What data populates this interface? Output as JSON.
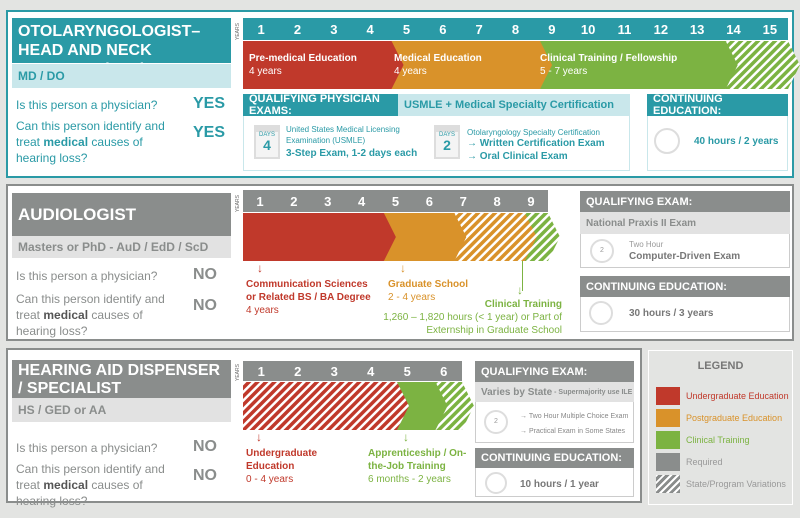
{
  "colors": {
    "teal": "#2a9aa6",
    "light_teal": "#c9e7eb",
    "red": "#c0392b",
    "orange": "#d9922a",
    "green": "#7cb342",
    "gray": "#8a8d8c",
    "light_gray": "#e2e2e2"
  },
  "years_label": "YEARS",
  "ent": {
    "title": "OTOLARYNGOLOGIST–HEAD AND NECK SURGEON (ENT)",
    "degree": "MD / DO",
    "q1": "Is this person a physician?",
    "a1": "YES",
    "q2_pre": "Can this person identify and treat ",
    "q2_bold": "medical",
    "q2_post": " causes of hearing loss?",
    "a2": "YES",
    "years": [
      1,
      2,
      3,
      4,
      5,
      6,
      7,
      8,
      9,
      10,
      11,
      12,
      13,
      14,
      15
    ],
    "segments": [
      {
        "label": "Pre-medical Education",
        "duration": "4 years",
        "color": "red",
        "start": 0,
        "end": 4,
        "hatched": false
      },
      {
        "label": "Medical Education",
        "duration": "4 years",
        "color": "orange",
        "start": 4,
        "end": 8,
        "hatched": false
      },
      {
        "label": "Clinical Training / Fellowship",
        "duration": "5 - 7 years",
        "color": "green",
        "start": 8,
        "end": 13,
        "hatched": false
      },
      {
        "color": "green",
        "start": 13,
        "end": 15,
        "hatched": true
      }
    ],
    "exam_header": "QUALIFYING PHYSICIAN EXAMS:",
    "exam_header2": "USMLE + Medical Specialty Certification",
    "exam1": {
      "days_label": "DAYS",
      "days": "4",
      "name": "United States Medical Licensing Examination (USMLE)",
      "detail": "3-Step Exam, 1-2 days each"
    },
    "exam2": {
      "days_label": "DAYS",
      "days": "2",
      "name": "Otolaryngology Specialty Certification",
      "items": [
        "→ Written Certification Exam",
        "→ Oral Clinical Exam"
      ]
    },
    "ce_header": "CONTINUING EDUCATION:",
    "ce": "40 hours / 2 years"
  },
  "aud": {
    "title": "AUDIOLOGIST",
    "degree": "Masters or PhD - AuD / EdD / ScD",
    "q1": "Is this person a physician?",
    "a1": "NO",
    "q2_pre": "Can this person identify and treat ",
    "q2_bold": "medical",
    "q2_post": " causes of hearing loss?",
    "a2": "NO",
    "years": [
      1,
      2,
      3,
      4,
      5,
      6,
      7,
      8,
      9
    ],
    "segments": [
      {
        "color": "red",
        "start": 0,
        "end": 4,
        "hatched": false
      },
      {
        "color": "orange",
        "start": 4,
        "end": 6,
        "hatched": false
      },
      {
        "color": "orange",
        "start": 6,
        "end": 8,
        "hatched": true
      },
      {
        "color": "green",
        "start": 8,
        "end": 9,
        "hatched": true
      }
    ],
    "labels": [
      {
        "title": "Communication Sciences or Related BS / BA Degree",
        "duration": "4 years",
        "color": "red"
      },
      {
        "title": "Graduate School",
        "duration": "2 - 4 years",
        "color": "orange"
      },
      {
        "title": "Clinical Training",
        "duration": "1,260 – 1,820 hours (< 1 year) or Part of Externship in Graduate School",
        "color": "green"
      }
    ],
    "exam_header": "QUALIFYING EXAM:",
    "exam_name": "National Praxis II Exam",
    "exam_small": "Two Hour",
    "exam_detail": "Computer-Driven Exam",
    "ce_header": "CONTINUING EDUCATION:",
    "ce": "30 hours / 3 years"
  },
  "had": {
    "title": "HEARING AID DISPENSER / SPECIALIST",
    "degree": "HS / GED or AA",
    "q1": "Is this person a physician?",
    "a1": "NO",
    "q2_pre": "Can this person identify and treat ",
    "q2_bold": "medical",
    "q2_post": " causes of hearing loss?",
    "a2": "NO",
    "years": [
      1,
      2,
      3,
      4,
      5,
      6
    ],
    "segments": [
      {
        "color": "red",
        "start": 0,
        "end": 4,
        "hatched": true
      },
      {
        "color": "green",
        "start": 4,
        "end": 5,
        "hatched": false
      },
      {
        "color": "green",
        "start": 5,
        "end": 6,
        "hatched": true
      }
    ],
    "labels": [
      {
        "title": "Undergraduate Education",
        "duration": "0 - 4 years",
        "color": "red"
      },
      {
        "title": "Apprenticeship / On-the-Job Training",
        "duration": "6 months - 2 years",
        "color": "green"
      }
    ],
    "exam_header": "QUALIFYING EXAM:",
    "exam_name": "Varies by State",
    "exam_name_small": " - Supermajority use ILE",
    "exam_items": [
      "→ Two Hour Multiple Choice Exam",
      "→ Practical Exam in Some States"
    ],
    "ce_header": "CONTINUING EDUCATION:",
    "ce": "10 hours / 1 year"
  },
  "legend": {
    "title": "LEGEND",
    "items": [
      {
        "label": "Undergraduate Education",
        "color": "red"
      },
      {
        "label": "Postgraduate Education",
        "color": "orange"
      },
      {
        "label": "Clinical Training",
        "color": "green"
      },
      {
        "label": "Required",
        "color": "gray"
      },
      {
        "label": "State/Program Variations",
        "color": "hatch"
      }
    ]
  }
}
